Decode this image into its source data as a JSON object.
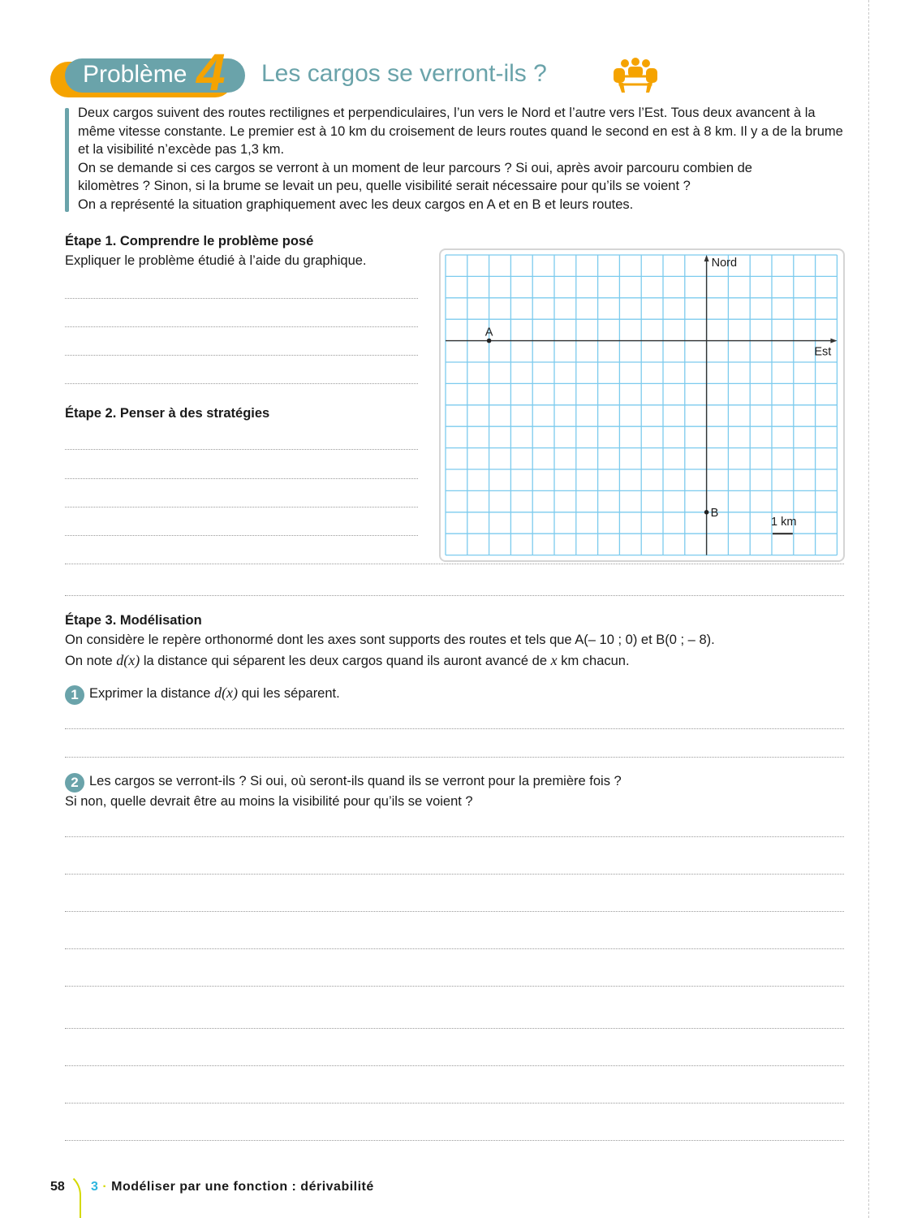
{
  "header": {
    "badge_label": "Problème",
    "badge_number": "4",
    "title": "Les cargos se verront-ils ?",
    "icon": "group-work-icon",
    "colors": {
      "teal": "#6aa3aa",
      "orange": "#f5a300"
    }
  },
  "intro": [
    "Deux cargos suivent des routes rectilignes et perpendiculaires, l’un vers le Nord et l’autre vers l’Est. Tous deux avancent à la même vitesse constante. Le premier est à 10 km du croisement de leurs routes quand le second en est à 8 km. Il y a de la brume et la visibilité n’excède pas 1,3 km.",
    "On se demande si ces cargos se verront à un moment de leur parcours ? Si oui, après avoir parcouru combien de kilomètres ? Sinon, si la brume se levait un peu, quelle visibilité serait nécessaire pour qu’ils se voient ?",
    "On a représenté la situation graphiquement avec les deux cargos en A et en B et leurs routes."
  ],
  "step1": {
    "title": "Étape 1. Comprendre le problème posé",
    "text": "Expliquer le problème étudié à l’aide du graphique."
  },
  "step2": {
    "title": "Étape 2. Penser à des stratégies"
  },
  "graph": {
    "north_label": "Nord",
    "east_label": "Est",
    "point_a": "A",
    "point_b": "B",
    "scale_label": "1 km",
    "A": [
      -10,
      0
    ],
    "B": [
      0,
      -8
    ],
    "xrange": [
      -12,
      6
    ],
    "yrange": [
      -10,
      4
    ],
    "grid_color": "#7ccbee"
  },
  "step3": {
    "title": "Étape 3. Modélisation",
    "line1": "On considère le repère orthonormé dont les axes sont supports des routes et tels que A(– 10 ; 0) et B(0 ; – 8).",
    "line2_a": "On note ",
    "line2_var": "d(x)",
    "line2_b": " la distance qui séparent les deux cargos quand ils auront avancé de ",
    "line2_x": "x",
    "line2_c": " km chacun.",
    "q1_num": "1",
    "q1_a": "Exprimer la distance ",
    "q1_var": "d(x)",
    "q1_b": " qui les séparent.",
    "q2_num": "2",
    "q2_line1": "Les cargos se verront-ils ? Si oui, où seront-ils quand ils se verront pour la première fois ?",
    "q2_line2": "Si non, quelle devrait être au moins la visibilité pour qu’ils se voient ?"
  },
  "footer": {
    "page_number": "58",
    "chapter_number": "3",
    "chapter_title": "Modéliser par une fonction : dérivabilité"
  }
}
